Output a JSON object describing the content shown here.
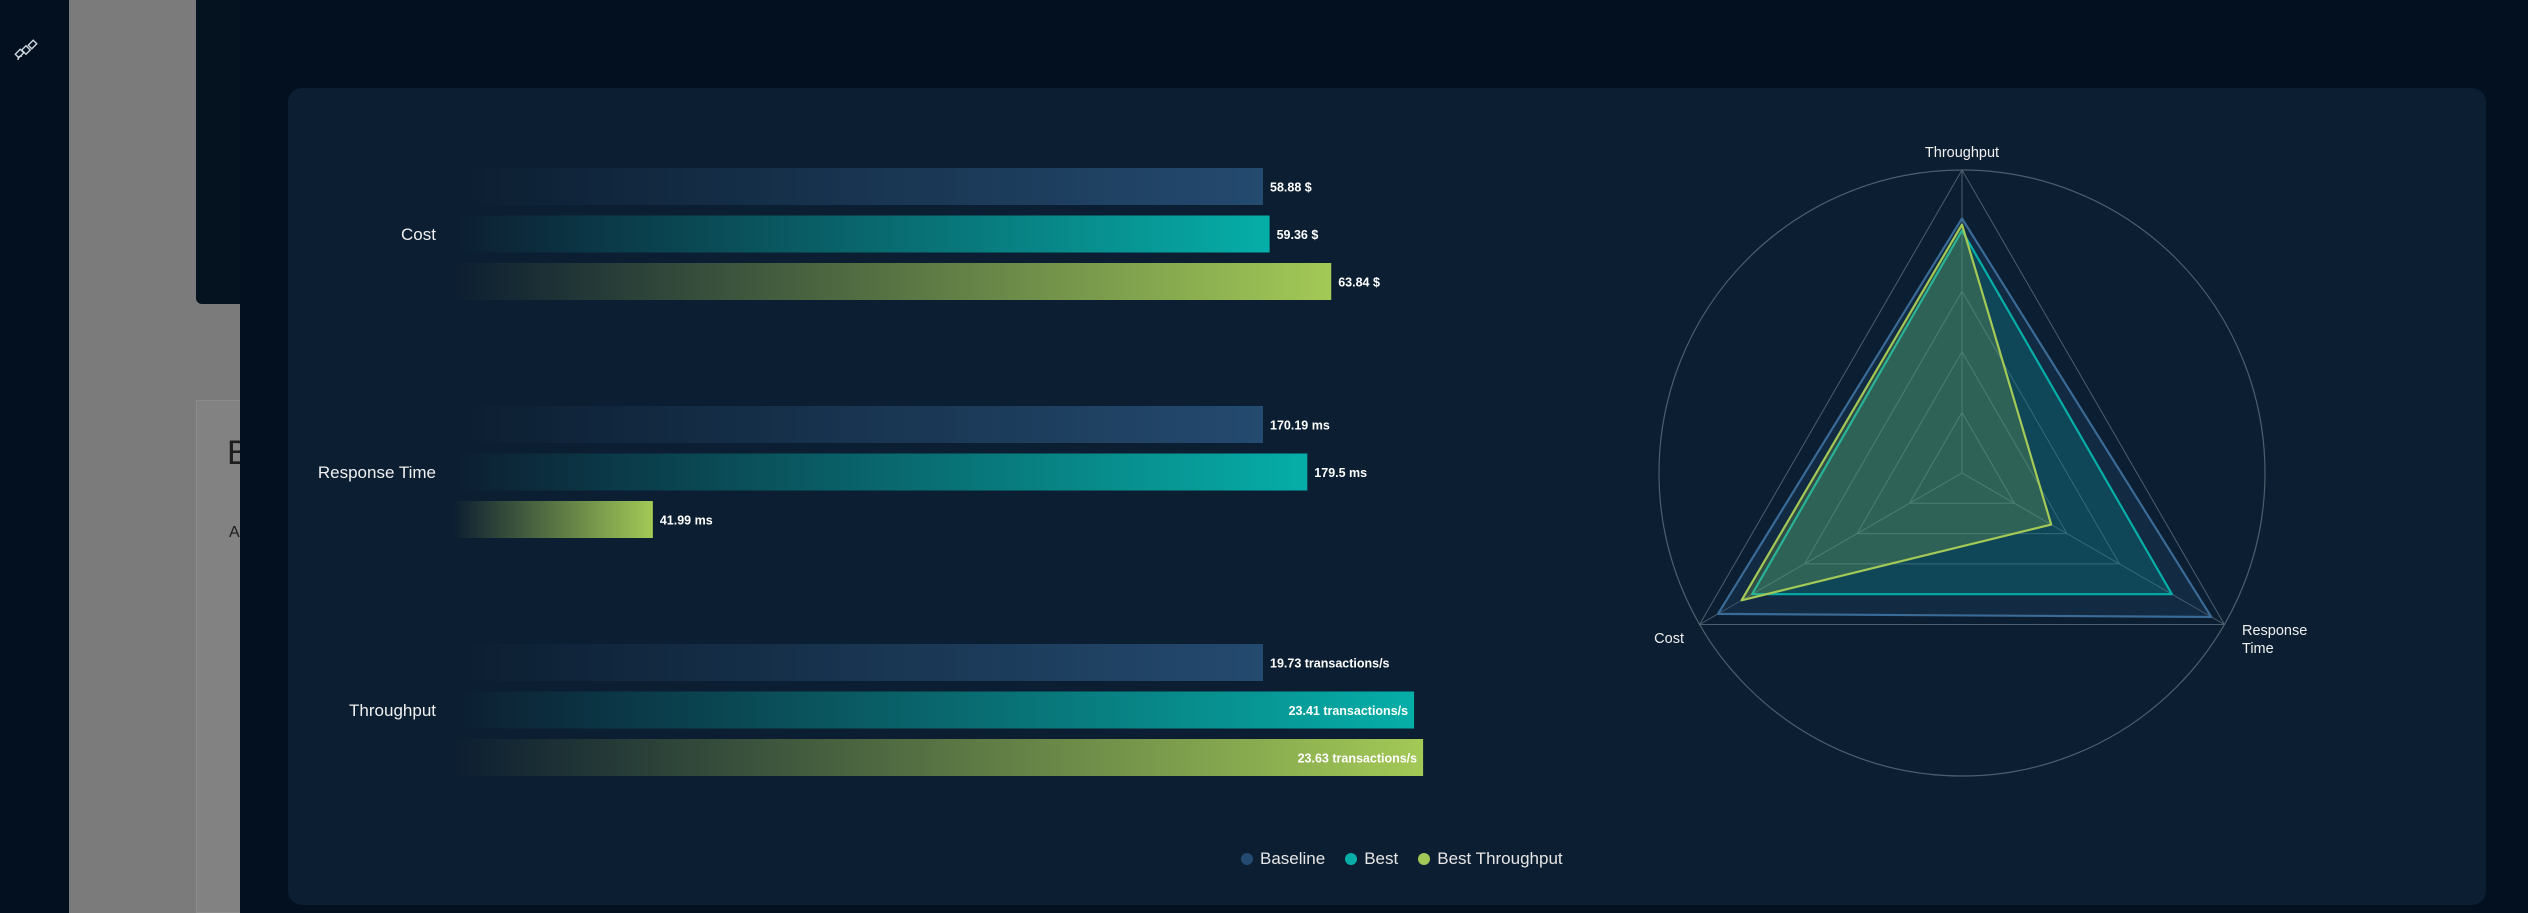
{
  "colors": {
    "baseline": "#244a6f",
    "best": "#06aea8",
    "best_throughput": "#a3c956",
    "radar_grid": "#4d5e6e"
  },
  "background": {
    "rail_icon": "satellite-icon",
    "letter_b": "B",
    "letter_a": "A"
  },
  "chart_data": [
    {
      "type": "bar",
      "orientation": "horizontal",
      "categories": [
        "Cost",
        "Response Time",
        "Throughput"
      ],
      "series": [
        {
          "name": "Baseline",
          "values": [
            58.88,
            170.19,
            19.73
          ],
          "labels": [
            "58.88 $",
            "170.19 ms",
            "19.73 transactions/s"
          ]
        },
        {
          "name": "Best",
          "values": [
            59.36,
            179.5,
            23.41
          ],
          "labels": [
            "59.36 $",
            "179.5 ms",
            "23.41 transactions/s"
          ]
        },
        {
          "name": "Best Throughput",
          "values": [
            63.84,
            41.99,
            23.63
          ],
          "labels": [
            "63.84 $",
            "41.99 ms",
            "23.63 transactions/s"
          ]
        }
      ]
    },
    {
      "type": "radar",
      "axes": [
        "Throughput",
        "Response Time",
        "Cost"
      ],
      "axis_label_lines": [
        [
          "Throughput"
        ],
        [
          "Response",
          "Time"
        ],
        [
          "Cost"
        ]
      ],
      "series": [
        {
          "name": "Baseline",
          "values": [
            0.84,
            0.95,
            0.93
          ]
        },
        {
          "name": "Best",
          "values": [
            0.8,
            0.8,
            0.8
          ]
        },
        {
          "name": "Best Throughput",
          "values": [
            0.82,
            0.34,
            0.84
          ]
        }
      ]
    }
  ],
  "legend": [
    {
      "label": "Baseline",
      "color": "#244a6f"
    },
    {
      "label": "Best",
      "color": "#06aea8"
    },
    {
      "label": "Best Throughput",
      "color": "#a3c956"
    }
  ]
}
